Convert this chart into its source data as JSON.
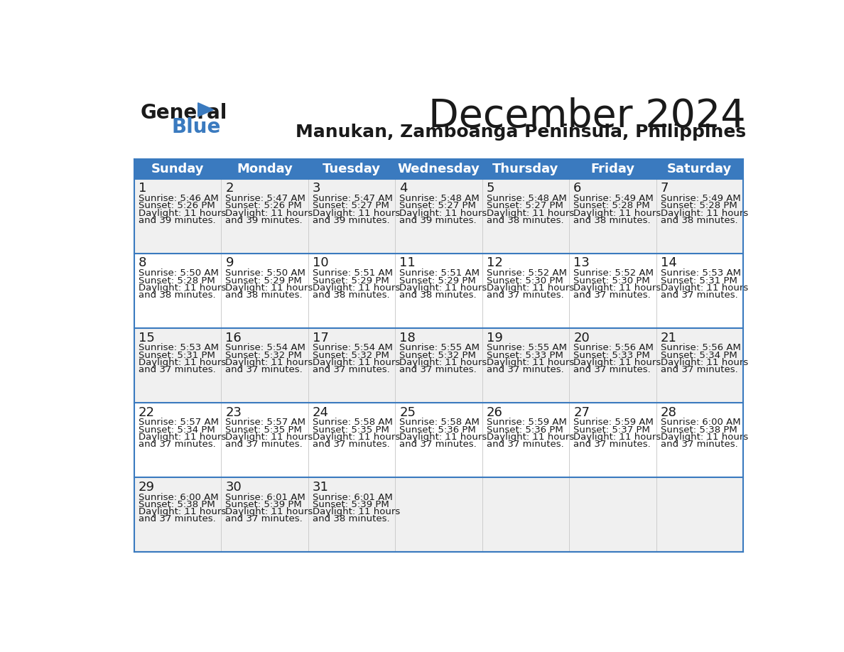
{
  "title": "December 2024",
  "subtitle": "Manukan, Zamboanga Peninsula, Philippines",
  "header_color": "#3a7abf",
  "header_text_color": "#ffffff",
  "cell_bg_even": "#f0f0f0",
  "cell_bg_odd": "#ffffff",
  "border_color": "#3a7abf",
  "text_color": "#1a1a1a",
  "day_headers": [
    "Sunday",
    "Monday",
    "Tuesday",
    "Wednesday",
    "Thursday",
    "Friday",
    "Saturday"
  ],
  "weeks": [
    [
      {
        "day": 1,
        "sunrise": "5:46 AM",
        "sunset": "5:26 PM",
        "daylight": "11 hours and 39 minutes."
      },
      {
        "day": 2,
        "sunrise": "5:47 AM",
        "sunset": "5:26 PM",
        "daylight": "11 hours and 39 minutes."
      },
      {
        "day": 3,
        "sunrise": "5:47 AM",
        "sunset": "5:27 PM",
        "daylight": "11 hours and 39 minutes."
      },
      {
        "day": 4,
        "sunrise": "5:48 AM",
        "sunset": "5:27 PM",
        "daylight": "11 hours and 39 minutes."
      },
      {
        "day": 5,
        "sunrise": "5:48 AM",
        "sunset": "5:27 PM",
        "daylight": "11 hours and 38 minutes."
      },
      {
        "day": 6,
        "sunrise": "5:49 AM",
        "sunset": "5:28 PM",
        "daylight": "11 hours and 38 minutes."
      },
      {
        "day": 7,
        "sunrise": "5:49 AM",
        "sunset": "5:28 PM",
        "daylight": "11 hours and 38 minutes."
      }
    ],
    [
      {
        "day": 8,
        "sunrise": "5:50 AM",
        "sunset": "5:28 PM",
        "daylight": "11 hours and 38 minutes."
      },
      {
        "day": 9,
        "sunrise": "5:50 AM",
        "sunset": "5:29 PM",
        "daylight": "11 hours and 38 minutes."
      },
      {
        "day": 10,
        "sunrise": "5:51 AM",
        "sunset": "5:29 PM",
        "daylight": "11 hours and 38 minutes."
      },
      {
        "day": 11,
        "sunrise": "5:51 AM",
        "sunset": "5:29 PM",
        "daylight": "11 hours and 38 minutes."
      },
      {
        "day": 12,
        "sunrise": "5:52 AM",
        "sunset": "5:30 PM",
        "daylight": "11 hours and 37 minutes."
      },
      {
        "day": 13,
        "sunrise": "5:52 AM",
        "sunset": "5:30 PM",
        "daylight": "11 hours and 37 minutes."
      },
      {
        "day": 14,
        "sunrise": "5:53 AM",
        "sunset": "5:31 PM",
        "daylight": "11 hours and 37 minutes."
      }
    ],
    [
      {
        "day": 15,
        "sunrise": "5:53 AM",
        "sunset": "5:31 PM",
        "daylight": "11 hours and 37 minutes."
      },
      {
        "day": 16,
        "sunrise": "5:54 AM",
        "sunset": "5:32 PM",
        "daylight": "11 hours and 37 minutes."
      },
      {
        "day": 17,
        "sunrise": "5:54 AM",
        "sunset": "5:32 PM",
        "daylight": "11 hours and 37 minutes."
      },
      {
        "day": 18,
        "sunrise": "5:55 AM",
        "sunset": "5:32 PM",
        "daylight": "11 hours and 37 minutes."
      },
      {
        "day": 19,
        "sunrise": "5:55 AM",
        "sunset": "5:33 PM",
        "daylight": "11 hours and 37 minutes."
      },
      {
        "day": 20,
        "sunrise": "5:56 AM",
        "sunset": "5:33 PM",
        "daylight": "11 hours and 37 minutes."
      },
      {
        "day": 21,
        "sunrise": "5:56 AM",
        "sunset": "5:34 PM",
        "daylight": "11 hours and 37 minutes."
      }
    ],
    [
      {
        "day": 22,
        "sunrise": "5:57 AM",
        "sunset": "5:34 PM",
        "daylight": "11 hours and 37 minutes."
      },
      {
        "day": 23,
        "sunrise": "5:57 AM",
        "sunset": "5:35 PM",
        "daylight": "11 hours and 37 minutes."
      },
      {
        "day": 24,
        "sunrise": "5:58 AM",
        "sunset": "5:35 PM",
        "daylight": "11 hours and 37 minutes."
      },
      {
        "day": 25,
        "sunrise": "5:58 AM",
        "sunset": "5:36 PM",
        "daylight": "11 hours and 37 minutes."
      },
      {
        "day": 26,
        "sunrise": "5:59 AM",
        "sunset": "5:36 PM",
        "daylight": "11 hours and 37 minutes."
      },
      {
        "day": 27,
        "sunrise": "5:59 AM",
        "sunset": "5:37 PM",
        "daylight": "11 hours and 37 minutes."
      },
      {
        "day": 28,
        "sunrise": "6:00 AM",
        "sunset": "5:38 PM",
        "daylight": "11 hours and 37 minutes."
      }
    ],
    [
      {
        "day": 29,
        "sunrise": "6:00 AM",
        "sunset": "5:38 PM",
        "daylight": "11 hours and 37 minutes."
      },
      {
        "day": 30,
        "sunrise": "6:01 AM",
        "sunset": "5:39 PM",
        "daylight": "11 hours and 37 minutes."
      },
      {
        "day": 31,
        "sunrise": "6:01 AM",
        "sunset": "5:39 PM",
        "daylight": "11 hours and 38 minutes."
      },
      null,
      null,
      null,
      null
    ]
  ],
  "logo_general_color": "#1a1a1a",
  "logo_blue_color": "#3a7abf",
  "logo_triangle_color": "#3a7abf",
  "title_fontsize": 40,
  "subtitle_fontsize": 18,
  "header_fontsize": 13,
  "day_num_fontsize": 13,
  "cell_text_fontsize": 9.5
}
